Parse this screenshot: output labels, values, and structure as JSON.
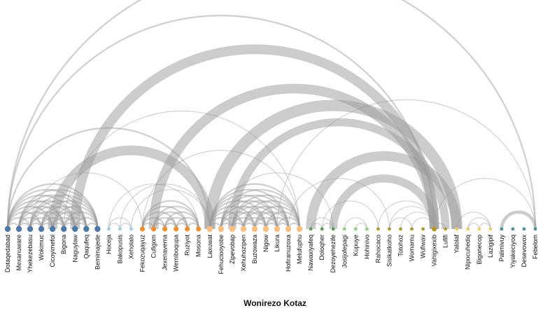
{
  "title": "Wonirezo Kotaz",
  "colors": {
    "link": "#9a9a9a",
    "nodes": {
      "g1": "#4e79a7",
      "g2": "#a0cbe8",
      "g3": "#f28e2b",
      "g4": "#ffbe7d",
      "g5": "#59a14f",
      "g6": "#8cd17d",
      "g7": "#b6992d",
      "g8": "#f1ce63",
      "g9": "#499894"
    }
  },
  "chart_data": {
    "type": "arc-diagram",
    "nodes": [
      {
        "name": "Dotaqedabad",
        "group": "g1",
        "size": 3
      },
      {
        "name": "Mexanuware",
        "group": "g1",
        "size": 3
      },
      {
        "name": "Yhekezebasu",
        "group": "g1",
        "size": 3
      },
      {
        "name": "Wokimuc",
        "group": "g1",
        "size": 3
      },
      {
        "name": "Cicoyimefol",
        "group": "g1",
        "size": 3
      },
      {
        "name": "Bigona",
        "group": "g1",
        "size": 3
      },
      {
        "name": "Naguylaw",
        "group": "g1",
        "size": 3
      },
      {
        "name": "Qaqufeq",
        "group": "g1",
        "size": 3
      },
      {
        "name": "Bemimajede",
        "group": "g1",
        "size": 3
      },
      {
        "name": "Hoceja",
        "group": "g2",
        "size": 1
      },
      {
        "name": "Bakopusis",
        "group": "g2",
        "size": 1
      },
      {
        "name": "Xeholalo",
        "group": "g2",
        "size": 1
      },
      {
        "name": "Fekozuqayuz",
        "group": "g3",
        "size": 2
      },
      {
        "name": "Cufigom",
        "group": "g3",
        "size": 2
      },
      {
        "name": "Jexenavema",
        "group": "g3",
        "size": 2
      },
      {
        "name": "Wemiboqupa",
        "group": "g3",
        "size": 2
      },
      {
        "name": "Ruziyot",
        "group": "g3",
        "size": 2
      },
      {
        "name": "Mosona",
        "group": "g3",
        "size": 2
      },
      {
        "name": "Laxuwat",
        "group": "g4",
        "size": 3
      },
      {
        "name": "Fehuciooyobe",
        "group": "g4",
        "size": 3
      },
      {
        "name": "Zipevobap",
        "group": "g4",
        "size": 3
      },
      {
        "name": "Xehuhozipen",
        "group": "g4",
        "size": 3
      },
      {
        "name": "Buzowaza",
        "group": "g4",
        "size": 3
      },
      {
        "name": "Nigow",
        "group": "g4",
        "size": 3
      },
      {
        "name": "Likura",
        "group": "g4",
        "size": 3
      },
      {
        "name": "Hofiranuzoxa",
        "group": "g4",
        "size": 3
      },
      {
        "name": "Melufuphu",
        "group": "g4",
        "size": 3
      },
      {
        "name": "Nawaxiyafeq",
        "group": "g5",
        "size": 1
      },
      {
        "name": "Doloqher",
        "group": "g5",
        "size": 1
      },
      {
        "name": "Dezoyehezife",
        "group": "g5",
        "size": 1
      },
      {
        "name": "Josijofepagi",
        "group": "g6",
        "size": 1
      },
      {
        "name": "Kupuye",
        "group": "g6",
        "size": 1
      },
      {
        "name": "Hohinivo",
        "group": "g6",
        "size": 1
      },
      {
        "name": "Rahocaco",
        "group": "g7",
        "size": 1
      },
      {
        "name": "Sisikatkoho",
        "group": "g7",
        "size": 1
      },
      {
        "name": "Totohoz",
        "group": "g7",
        "size": 1
      },
      {
        "name": "Womamu",
        "group": "g7",
        "size": 1
      },
      {
        "name": "Wufiwav",
        "group": "g7",
        "size": 1
      },
      {
        "name": "Vahigixexib",
        "group": "g7",
        "size": 2
      },
      {
        "name": "Lufifi",
        "group": "g7",
        "size": 1
      },
      {
        "name": "Yalolaf",
        "group": "g8",
        "size": 1
      },
      {
        "name": "Nipocuhediq",
        "group": "g8",
        "size": 1
      },
      {
        "name": "Bigonecop",
        "group": "g8",
        "size": 1
      },
      {
        "name": "Lazigipif",
        "group": "g8",
        "size": 1
      },
      {
        "name": "Palimivuy",
        "group": "g9",
        "size": 1
      },
      {
        "name": "Yiyakeciyoq",
        "group": "g9",
        "size": 1
      },
      {
        "name": "Desevowox",
        "group": "g9",
        "size": 1
      },
      {
        "name": "Febelom",
        "group": "g9",
        "size": 1
      }
    ],
    "links": [
      {
        "source": "Dotaqedabad",
        "target": "Mexanuware",
        "value": 2
      },
      {
        "source": "Dotaqedabad",
        "target": "Yhekezebasu",
        "value": 2
      },
      {
        "source": "Dotaqedabad",
        "target": "Wokimuc",
        "value": 2
      },
      {
        "source": "Dotaqedabad",
        "target": "Cicoyimefol",
        "value": 2
      },
      {
        "source": "Dotaqedabad",
        "target": "Bigona",
        "value": 2
      },
      {
        "source": "Dotaqedabad",
        "target": "Naguylaw",
        "value": 2
      },
      {
        "source": "Dotaqedabad",
        "target": "Qaqufeq",
        "value": 2
      },
      {
        "source": "Dotaqedabad",
        "target": "Bemimajede",
        "value": 2
      },
      {
        "source": "Mexanuware",
        "target": "Yhekezebasu",
        "value": 2
      },
      {
        "source": "Mexanuware",
        "target": "Wokimuc",
        "value": 2
      },
      {
        "source": "Mexanuware",
        "target": "Cicoyimefol",
        "value": 2
      },
      {
        "source": "Mexanuware",
        "target": "Bigona",
        "value": 2
      },
      {
        "source": "Mexanuware",
        "target": "Naguylaw",
        "value": 2
      },
      {
        "source": "Mexanuware",
        "target": "Qaqufeq",
        "value": 2
      },
      {
        "source": "Mexanuware",
        "target": "Bemimajede",
        "value": 2
      },
      {
        "source": "Yhekezebasu",
        "target": "Wokimuc",
        "value": 2
      },
      {
        "source": "Yhekezebasu",
        "target": "Cicoyimefol",
        "value": 2
      },
      {
        "source": "Yhekezebasu",
        "target": "Bigona",
        "value": 2
      },
      {
        "source": "Yhekezebasu",
        "target": "Naguylaw",
        "value": 2
      },
      {
        "source": "Yhekezebasu",
        "target": "Qaqufeq",
        "value": 2
      },
      {
        "source": "Yhekezebasu",
        "target": "Bemimajede",
        "value": 2
      },
      {
        "source": "Wokimuc",
        "target": "Cicoyimefol",
        "value": 2
      },
      {
        "source": "Wokimuc",
        "target": "Bigona",
        "value": 2
      },
      {
        "source": "Wokimuc",
        "target": "Naguylaw",
        "value": 2
      },
      {
        "source": "Wokimuc",
        "target": "Qaqufeq",
        "value": 2
      },
      {
        "source": "Wokimuc",
        "target": "Bemimajede",
        "value": 2
      },
      {
        "source": "Cicoyimefol",
        "target": "Bigona",
        "value": 2
      },
      {
        "source": "Cicoyimefol",
        "target": "Naguylaw",
        "value": 2
      },
      {
        "source": "Cicoyimefol",
        "target": "Qaqufeq",
        "value": 2
      },
      {
        "source": "Cicoyimefol",
        "target": "Bemimajede",
        "value": 2
      },
      {
        "source": "Bigona",
        "target": "Naguylaw",
        "value": 2
      },
      {
        "source": "Bigona",
        "target": "Qaqufeq",
        "value": 2
      },
      {
        "source": "Bigona",
        "target": "Bemimajede",
        "value": 2
      },
      {
        "source": "Naguylaw",
        "target": "Qaqufeq",
        "value": 2
      },
      {
        "source": "Naguylaw",
        "target": "Bemimajede",
        "value": 2
      },
      {
        "source": "Qaqufeq",
        "target": "Bemimajede",
        "value": 2
      },
      {
        "source": "Hoceja",
        "target": "Bakopusis",
        "value": 1
      },
      {
        "source": "Hoceja",
        "target": "Xeholalo",
        "value": 1
      },
      {
        "source": "Bakopusis",
        "target": "Xeholalo",
        "value": 1
      },
      {
        "source": "Fekozuqayuz",
        "target": "Cufigom",
        "value": 2
      },
      {
        "source": "Fekozuqayuz",
        "target": "Jexenavema",
        "value": 2
      },
      {
        "source": "Fekozuqayuz",
        "target": "Wemiboqupa",
        "value": 2
      },
      {
        "source": "Fekozuqayuz",
        "target": "Ruziyot",
        "value": 2
      },
      {
        "source": "Fekozuqayuz",
        "target": "Mosona",
        "value": 2
      },
      {
        "source": "Cufigom",
        "target": "Jexenavema",
        "value": 2
      },
      {
        "source": "Cufigom",
        "target": "Wemiboqupa",
        "value": 2
      },
      {
        "source": "Cufigom",
        "target": "Ruziyot",
        "value": 2
      },
      {
        "source": "Cufigom",
        "target": "Mosona",
        "value": 2
      },
      {
        "source": "Jexenavema",
        "target": "Wemiboqupa",
        "value": 2
      },
      {
        "source": "Jexenavema",
        "target": "Ruziyot",
        "value": 2
      },
      {
        "source": "Jexenavema",
        "target": "Mosona",
        "value": 2
      },
      {
        "source": "Wemiboqupa",
        "target": "Ruziyot",
        "value": 2
      },
      {
        "source": "Wemiboqupa",
        "target": "Mosona",
        "value": 2
      },
      {
        "source": "Ruziyot",
        "target": "Mosona",
        "value": 2
      },
      {
        "source": "Laxuwat",
        "target": "Fehuciooyobe",
        "value": 2
      },
      {
        "source": "Laxuwat",
        "target": "Zipevobap",
        "value": 2
      },
      {
        "source": "Laxuwat",
        "target": "Xehuhozipen",
        "value": 2
      },
      {
        "source": "Laxuwat",
        "target": "Buzowaza",
        "value": 2
      },
      {
        "source": "Laxuwat",
        "target": "Nigow",
        "value": 2
      },
      {
        "source": "Laxuwat",
        "target": "Likura",
        "value": 2
      },
      {
        "source": "Laxuwat",
        "target": "Hofiranuzoxa",
        "value": 2
      },
      {
        "source": "Laxuwat",
        "target": "Melufuphu",
        "value": 2
      },
      {
        "source": "Fehuciooyobe",
        "target": "Zipevobap",
        "value": 2
      },
      {
        "source": "Fehuciooyobe",
        "target": "Xehuhozipen",
        "value": 2
      },
      {
        "source": "Fehuciooyobe",
        "target": "Buzowaza",
        "value": 2
      },
      {
        "source": "Fehuciooyobe",
        "target": "Nigow",
        "value": 2
      },
      {
        "source": "Fehuciooyobe",
        "target": "Likura",
        "value": 2
      },
      {
        "source": "Fehuciooyobe",
        "target": "Hofiranuzoxa",
        "value": 2
      },
      {
        "source": "Fehuciooyobe",
        "target": "Melufuphu",
        "value": 2
      },
      {
        "source": "Zipevobap",
        "target": "Xehuhozipen",
        "value": 2
      },
      {
        "source": "Zipevobap",
        "target": "Buzowaza",
        "value": 2
      },
      {
        "source": "Zipevobap",
        "target": "Nigow",
        "value": 2
      },
      {
        "source": "Zipevobap",
        "target": "Likura",
        "value": 2
      },
      {
        "source": "Zipevobap",
        "target": "Hofiranuzoxa",
        "value": 2
      },
      {
        "source": "Zipevobap",
        "target": "Melufuphu",
        "value": 2
      },
      {
        "source": "Xehuhozipen",
        "target": "Buzowaza",
        "value": 2
      },
      {
        "source": "Xehuhozipen",
        "target": "Nigow",
        "value": 2
      },
      {
        "source": "Xehuhozipen",
        "target": "Likura",
        "value": 2
      },
      {
        "source": "Xehuhozipen",
        "target": "Hofiranuzoxa",
        "value": 2
      },
      {
        "source": "Xehuhozipen",
        "target": "Melufuphu",
        "value": 2
      },
      {
        "source": "Buzowaza",
        "target": "Nigow",
        "value": 2
      },
      {
        "source": "Buzowaza",
        "target": "Likura",
        "value": 2
      },
      {
        "source": "Buzowaza",
        "target": "Hofiranuzoxa",
        "value": 2
      },
      {
        "source": "Buzowaza",
        "target": "Melufuphu",
        "value": 2
      },
      {
        "source": "Nigow",
        "target": "Likura",
        "value": 2
      },
      {
        "source": "Nigow",
        "target": "Hofiranuzoxa",
        "value": 2
      },
      {
        "source": "Nigow",
        "target": "Melufuphu",
        "value": 2
      },
      {
        "source": "Likura",
        "target": "Hofiranuzoxa",
        "value": 2
      },
      {
        "source": "Likura",
        "target": "Melufuphu",
        "value": 2
      },
      {
        "source": "Hofiranuzoxa",
        "target": "Melufuphu",
        "value": 2
      },
      {
        "source": "Nawaxiyafeq",
        "target": "Doloqher",
        "value": 1
      },
      {
        "source": "Nawaxiyafeq",
        "target": "Dezoyehezife",
        "value": 1
      },
      {
        "source": "Doloqher",
        "target": "Dezoyehezife",
        "value": 1
      },
      {
        "source": "Josijofepagi",
        "target": "Hohinivo",
        "value": 1
      },
      {
        "source": "Rahocaco",
        "target": "Vahigixexib",
        "value": 1
      },
      {
        "source": "Sisikatkoho",
        "target": "Vahigixexib",
        "value": 1
      },
      {
        "source": "Totohoz",
        "target": "Vahigixexib",
        "value": 1
      },
      {
        "source": "Womamu",
        "target": "Vahigixexib",
        "value": 1
      },
      {
        "source": "Sisikatkoho",
        "target": "Womamu",
        "value": 1
      },
      {
        "source": "Vahigixexib",
        "target": "Lufifi",
        "value": 1
      },
      {
        "source": "Yalolaf",
        "target": "Lazigipif",
        "value": 1
      },
      {
        "source": "Nipocuhediq",
        "target": "Bigonecop",
        "value": 1
      },
      {
        "source": "Nipocuhediq",
        "target": "Lazigipif",
        "value": 1
      },
      {
        "source": "Bigonecop",
        "target": "Lazigipif",
        "value": 1
      },
      {
        "source": "Palimivuy",
        "target": "Febelom",
        "value": 4
      },
      {
        "source": "Dotaqedabad",
        "target": "Laxuwat",
        "value": 2
      },
      {
        "source": "Dotaqedabad",
        "target": "Febelom",
        "value": 2
      },
      {
        "source": "Dotaqedabad",
        "target": "Vahigixexib",
        "value": 2
      },
      {
        "source": "Yhekezebasu",
        "target": "Fekozuqayuz",
        "value": 1
      },
      {
        "source": "Cicoyimefol",
        "target": "Laxuwat",
        "value": 12
      },
      {
        "source": "Naguylaw",
        "target": "Vahigixexib",
        "value": 12
      },
      {
        "source": "Hoceja",
        "target": "Mosona",
        "value": 1
      },
      {
        "source": "Bakopusis",
        "target": "Laxuwat",
        "value": 1
      },
      {
        "source": "Xeholalo",
        "target": "Laxuwat",
        "value": 1
      },
      {
        "source": "Cufigom",
        "target": "Vahigixexib",
        "value": 12
      },
      {
        "source": "Fekozuqayuz",
        "target": "Melufuphu",
        "value": 1
      },
      {
        "source": "Laxuwat",
        "target": "Yalolaf",
        "value": 14
      },
      {
        "source": "Fehuciooyobe",
        "target": "Dezoyehezife",
        "value": 1
      },
      {
        "source": "Zipevobap",
        "target": "Lufifi",
        "value": 10
      },
      {
        "source": "Likura",
        "target": "Febelom",
        "value": 1
      },
      {
        "source": "Hofiranuzoxa",
        "target": "Sisikatkoho",
        "value": 1
      },
      {
        "source": "Nawaxiyafeq",
        "target": "Yalolaf",
        "value": 12
      },
      {
        "source": "Doloqher",
        "target": "Rahocaco",
        "value": 1
      },
      {
        "source": "Dezoyehezife",
        "target": "Vahigixexib",
        "value": 10
      },
      {
        "source": "Vahigixexib",
        "target": "Febelom",
        "value": 1
      },
      {
        "source": "Kupuye",
        "target": "Hohinivo",
        "value": 1
      },
      {
        "source": "Bigona",
        "target": "Melufuphu",
        "value": 1
      }
    ]
  }
}
